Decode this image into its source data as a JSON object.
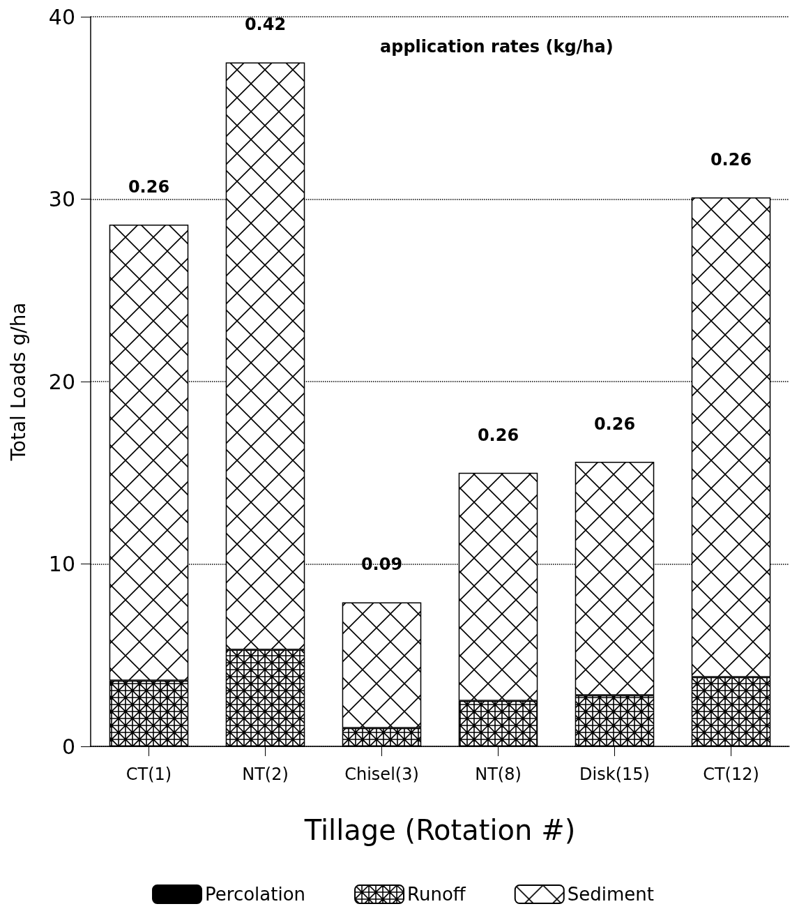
{
  "chart_data": {
    "type": "bar",
    "stacked": true,
    "xlabel": "Tillage (Rotation #)",
    "ylabel": "Total Loads g/ha",
    "categories": [
      "CT(1)",
      "NT(2)",
      "Chisel(3)",
      "NT(8)",
      "Disk(15)",
      "CT(12)"
    ],
    "series": [
      {
        "name": "Percolation",
        "color": "#000000",
        "values": [
          0,
          0,
          0,
          0,
          0,
          0
        ]
      },
      {
        "name": "Runoff",
        "color": "#000000",
        "values": [
          3.6,
          5.3,
          1.0,
          2.5,
          2.8,
          3.8
        ]
      },
      {
        "name": "Sediment",
        "color": "#000000",
        "values": [
          25.0,
          32.2,
          6.9,
          12.5,
          12.8,
          26.3
        ]
      }
    ],
    "ylim": [
      0,
      40
    ],
    "yticks": [
      0,
      10,
      20,
      30,
      40
    ],
    "grid": "y",
    "legend": "bottom",
    "annotations": [
      "application rates (kg/ha)",
      "0.26",
      "0.42",
      "0.09",
      "0.26",
      "0.26",
      "0.26"
    ]
  }
}
